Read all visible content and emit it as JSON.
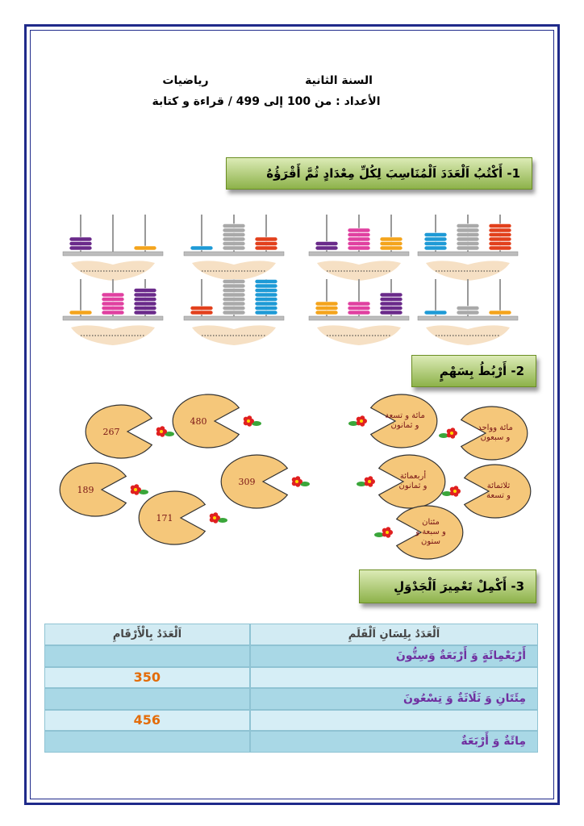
{
  "header": {
    "level": "السنة الثانية",
    "subject": "رياضيات",
    "topic": "الأعداد : من 100 إلى 499 / قراءة و كتابة"
  },
  "sections": [
    {
      "title": "1- أَكْتُبُ اَلْعَدَدَ اَلْمُنَاسِبَ لِكُلِّ مِعْدَادٍ ثُمَّ أَقْرَؤُهُ"
    },
    {
      "title": "2- أَرْبُطُ بِسَهْمٍ"
    },
    {
      "title": "3- أَكْمِلْ تَعْمِيرَ اَلْجَدْوَلِ"
    }
  ],
  "matching": {
    "numbers": [
      267,
      480,
      189,
      309,
      171
    ],
    "words": [
      {
        "lines": [
          "مائة و تسعة",
          "و ثمانون"
        ]
      },
      {
        "lines": [
          "مائة وواحد",
          "و سبعون"
        ]
      },
      {
        "lines": [
          "أربعمائة",
          "و ثمانون"
        ]
      },
      {
        "lines": [
          "ثلاثمائة",
          "و تسعة"
        ]
      },
      {
        "lines": [
          "مئتان",
          "و سبعة و",
          "ستون"
        ]
      }
    ]
  },
  "table": {
    "header": [
      "اَلْعَدَدُ بِلِسَانِ اَلْقَلَمِ",
      "اَلْعَدَدُ بِالْأَرْقَامِ"
    ],
    "rows": [
      {
        "words": "أَرْبَعْمِائَةٍ وَ أَرْبَعَةٌ وَسِتُّونَ"
      },
      {
        "digits": 350
      },
      {
        "words": "مِئَتَانِ وَ ثَلَاثَةٌ وَ تِسْعُونَ"
      },
      {
        "digits": 456
      },
      {
        "words": "مِائَةٌ وَ أَرْبَعَةٌ"
      }
    ]
  }
}
